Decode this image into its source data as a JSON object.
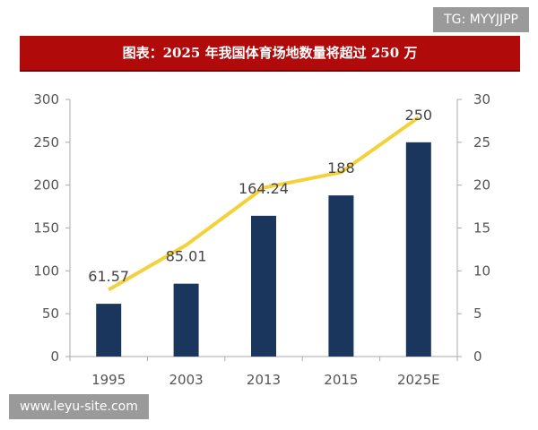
{
  "watermarks": {
    "top": "TG: MYYJJPP",
    "bottom": "www.leyu-site.com"
  },
  "chart_data": {
    "type": "bar",
    "title": "图表：2025 年我国体育场地数量将超过 250 万",
    "categories": [
      "1995",
      "2003",
      "2013",
      "2015",
      "2025E"
    ],
    "series": [
      {
        "type": "bar",
        "axis": "left",
        "color": "#1b365d",
        "values": [
          61.57,
          85.01,
          164.24,
          188,
          250
        ],
        "data_labels": [
          "61.57",
          "85.01",
          "164.24",
          "188",
          "250"
        ]
      },
      {
        "type": "line",
        "axis": "right",
        "color": "#f2d13a",
        "values": [
          7.8,
          13.0,
          19.7,
          21.5,
          27.9
        ]
      }
    ],
    "y_left": {
      "range": [
        0,
        300
      ],
      "ticks": [
        "0",
        "50",
        "100",
        "150",
        "200",
        "250",
        "300"
      ]
    },
    "y_right": {
      "range": [
        0,
        30
      ],
      "ticks": [
        "0",
        "5",
        "10",
        "15",
        "20",
        "25",
        "30"
      ]
    },
    "grid": false,
    "legend": "none"
  }
}
